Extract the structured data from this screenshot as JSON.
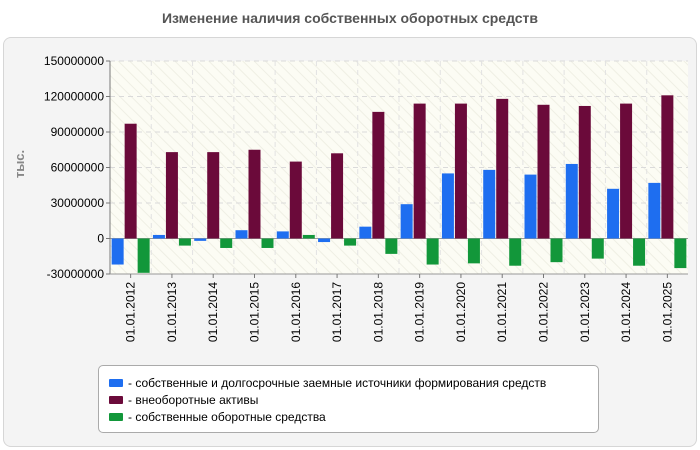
{
  "chart_data": {
    "type": "bar",
    "title": "Изменение наличия собственных оборотных средств",
    "ylabel": "тыс.",
    "xlabel": "",
    "ylim": [
      -30000000,
      150000000
    ],
    "yticks": [
      150000000,
      120000000,
      90000000,
      60000000,
      30000000,
      0,
      -30000000
    ],
    "ytick_labels": [
      "150000000",
      "120000000",
      "90000000",
      "60000000",
      "30000000",
      "0",
      "-30000000"
    ],
    "categories": [
      "01.01.2012",
      "01.01.2013",
      "01.01.2014",
      "01.01.2015",
      "01.01.2016",
      "01.01.2017",
      "01.01.2018",
      "01.01.2019",
      "01.01.2020",
      "01.01.2021",
      "01.01.2022",
      "01.01.2023",
      "01.01.2024",
      "01.01.2025"
    ],
    "series": [
      {
        "name": "- собственные и долгосрочные заемные источники формирования средств",
        "color": "#1e6ef0",
        "values": [
          -22000000,
          3000000,
          -2000000,
          7000000,
          6000000,
          -3000000,
          10000000,
          29000000,
          55000000,
          58000000,
          54000000,
          63000000,
          42000000,
          47000000
        ]
      },
      {
        "name": "- внеоборотные активы",
        "color": "#6b0a3a",
        "values": [
          97000000,
          73000000,
          73000000,
          75000000,
          65000000,
          72000000,
          107000000,
          114000000,
          114000000,
          118000000,
          113000000,
          112000000,
          114000000,
          121000000
        ]
      },
      {
        "name": "- собственные оборотные средства",
        "color": "#12973a",
        "values": [
          -29000000,
          -6000000,
          -8000000,
          -8000000,
          3000000,
          -6000000,
          -13000000,
          -22000000,
          -21000000,
          -23000000,
          -20000000,
          -17000000,
          -23000000,
          -25000000
        ]
      }
    ]
  }
}
